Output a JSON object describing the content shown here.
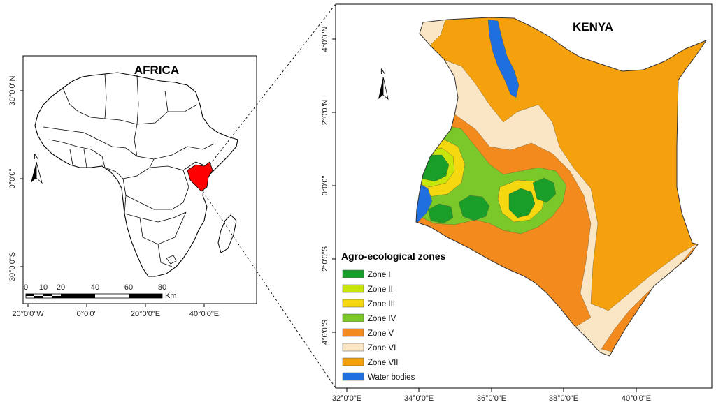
{
  "africa_map": {
    "title": "AFRICA",
    "north_label": "N",
    "y_ticks": [
      "30°0'0\"N",
      "0°0'0\"",
      "30°0'0\"S"
    ],
    "x_ticks": [
      "20°0'0\"W",
      "0°0'0\"",
      "20°0'0\"E",
      "40°0'0\"E"
    ],
    "scale_bar": {
      "labels": [
        "0",
        "10",
        "20",
        "40",
        "60",
        "80"
      ],
      "unit": "Km"
    },
    "highlight_color": "#ff0000"
  },
  "kenya_map": {
    "title": "KENYA",
    "north_label": "N",
    "y_ticks": [
      "4°0'0\"N",
      "2°0'0\"N",
      "0°0'0\"",
      "2°0'0\"S",
      "4°0'0\"S"
    ],
    "x_ticks": [
      "32°0'0\"E",
      "34°0'0\"E",
      "36°0'0\"E",
      "38°0'0\"E",
      "40°0'0\"E"
    ]
  },
  "legend": {
    "title": "Agro-ecological zones",
    "items": [
      {
        "label": "Zone I",
        "color": "#1a9e2a"
      },
      {
        "label": "Zone II",
        "color": "#c8e60a"
      },
      {
        "label": "Zone III",
        "color": "#f5d80f"
      },
      {
        "label": "Zone IV",
        "color": "#7ac82a"
      },
      {
        "label": "Zone V",
        "color": "#f28a1e"
      },
      {
        "label": "Zone VI",
        "color": "#fae6c4"
      },
      {
        "label": "Zone VII",
        "color": "#f5a10e"
      },
      {
        "label": "Water bodies",
        "color": "#1f6fe0"
      }
    ]
  }
}
